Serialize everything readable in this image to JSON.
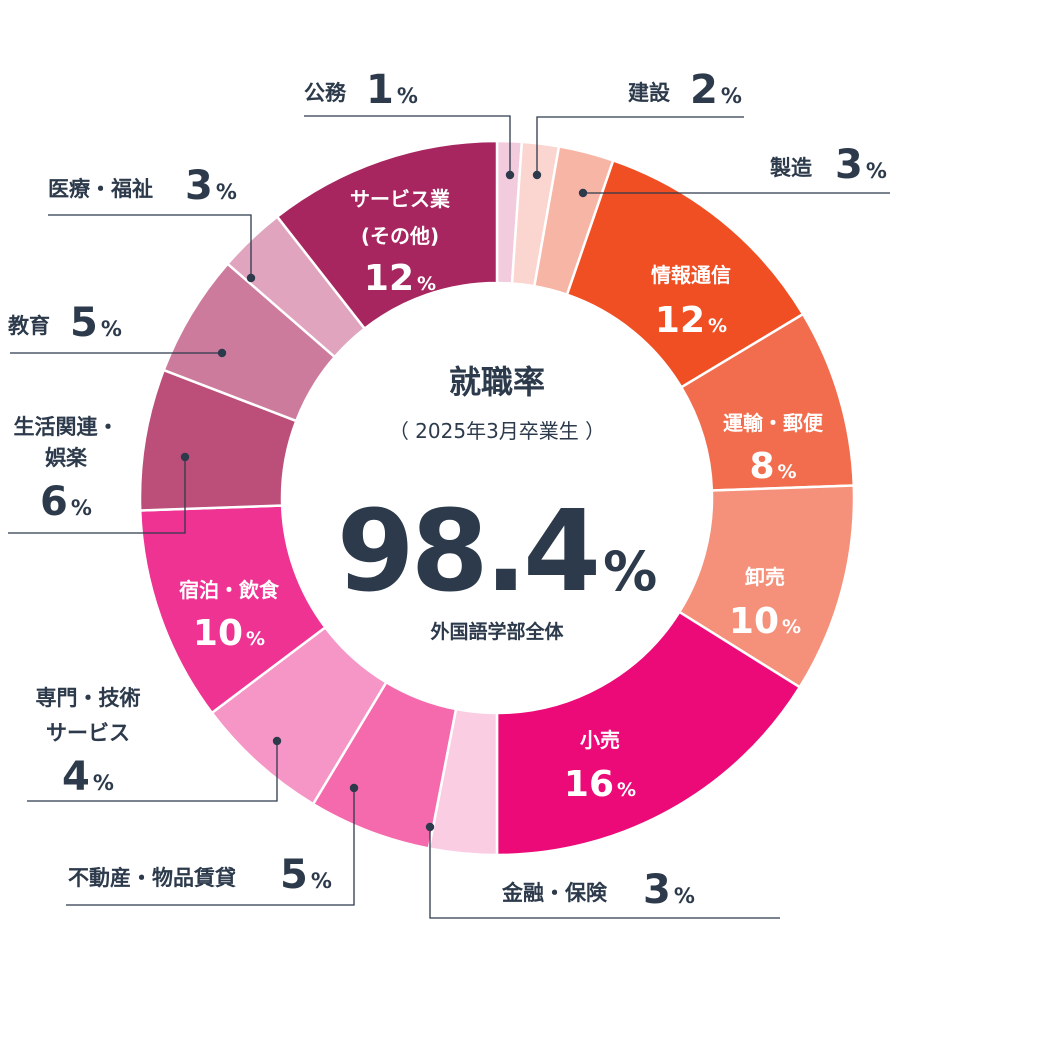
{
  "chart_data": {
    "type": "pie",
    "title": "就職率",
    "subtitle": "（ 2025年3月卒業生 ）",
    "total": {
      "value": "98.4",
      "unit": "%",
      "caption": "外国語学部全体"
    },
    "unit": "%",
    "slices": [
      {
        "label": "公務",
        "value": 1,
        "color": "#f2cbdc"
      },
      {
        "label": "建設",
        "value": 2,
        "color": "#fbd5cf"
      },
      {
        "label": "製造",
        "value": 3,
        "color": "#f7b5a6"
      },
      {
        "label": "情報通信",
        "value": 12,
        "color": "#f04e23"
      },
      {
        "label": "運輸・郵便",
        "value": 8,
        "color": "#f26d4d"
      },
      {
        "label": "卸売",
        "value": 10,
        "color": "#f5917a"
      },
      {
        "label": "小売",
        "value": 16,
        "color": "#eb0a78"
      },
      {
        "label": "金融・保険",
        "value": 3,
        "color": "#facde3"
      },
      {
        "label": "不動産・物品賃貸",
        "value": 5,
        "color": "#f46aac"
      },
      {
        "label": "専門・技術サービス",
        "value": 4,
        "color": "#f596c6"
      },
      {
        "label": "宿泊・飲食",
        "value": 10,
        "color": "#ee3393"
      },
      {
        "label": "生活関連・娯楽",
        "value": 6,
        "color": "#bb4f79"
      },
      {
        "label": "教育",
        "value": 5,
        "color": "#cd7b9c"
      },
      {
        "label": "医療・福祉",
        "value": 3,
        "color": "#e0a4be"
      },
      {
        "label": "サービス業(その他)",
        "value": 12,
        "color": "#a82660"
      }
    ]
  }
}
